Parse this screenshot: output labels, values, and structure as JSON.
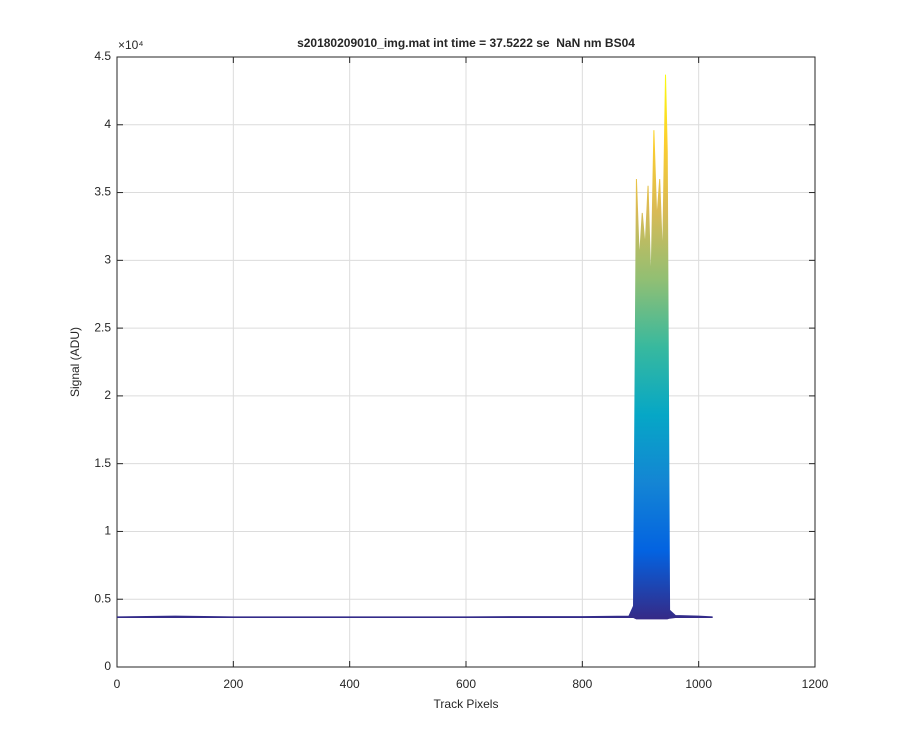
{
  "chart_data": {
    "type": "area",
    "title": "s20180209010_img.mat int time = 37.5222 se  NaN nm BS04",
    "x_label": "Track Pixels",
    "y_label": "Signal (ADU)",
    "y_multiplier": "×10⁴",
    "x": [
      0,
      100,
      200,
      300,
      400,
      500,
      600,
      700,
      800,
      880,
      888,
      893,
      898,
      903,
      908,
      913,
      918,
      923,
      928,
      933,
      938,
      943,
      946,
      950,
      960,
      1000,
      1024
    ],
    "series": [
      {
        "values": [
          3700,
          3750,
          3700,
          3700,
          3700,
          3700,
          3700,
          3720,
          3720,
          3750,
          4500,
          36000,
          30000,
          33500,
          31000,
          35500,
          28000,
          39600,
          33000,
          36000,
          30000,
          43700,
          38000,
          4200,
          3800,
          3750,
          3700
        ]
      },
      {
        "values": [
          3650,
          3650,
          3650,
          3650,
          3650,
          3650,
          3650,
          3650,
          3650,
          3650,
          3650,
          3550,
          3550,
          3550,
          3550,
          3550,
          3550,
          3550,
          3550,
          3550,
          3550,
          3550,
          3550,
          3600,
          3650,
          3650,
          3650
        ]
      }
    ],
    "colormap": [
      "#352a87",
      "#0363e1",
      "#1485d4",
      "#06a7c6",
      "#38b99e",
      "#92bf73",
      "#d9ba56",
      "#fcce2e",
      "#f9fb0e"
    ],
    "xlim": [
      0,
      1200
    ],
    "xticks": [
      0,
      200,
      400,
      600,
      800,
      1000,
      1200
    ],
    "ylim": [
      0,
      45000
    ],
    "yticks": [
      0,
      {
        "value": 5000,
        "label": "0.5"
      },
      {
        "value": 10000,
        "label": "1"
      },
      {
        "value": 15000,
        "label": "1.5"
      },
      {
        "value": 20000,
        "label": "2"
      },
      {
        "value": 25000,
        "label": "2.5"
      },
      {
        "value": 30000,
        "label": "3"
      },
      {
        "value": 35000,
        "label": "3.5"
      },
      {
        "value": 40000,
        "label": "4"
      },
      {
        "value": 45000,
        "label": "4.5"
      }
    ],
    "grid": true
  }
}
